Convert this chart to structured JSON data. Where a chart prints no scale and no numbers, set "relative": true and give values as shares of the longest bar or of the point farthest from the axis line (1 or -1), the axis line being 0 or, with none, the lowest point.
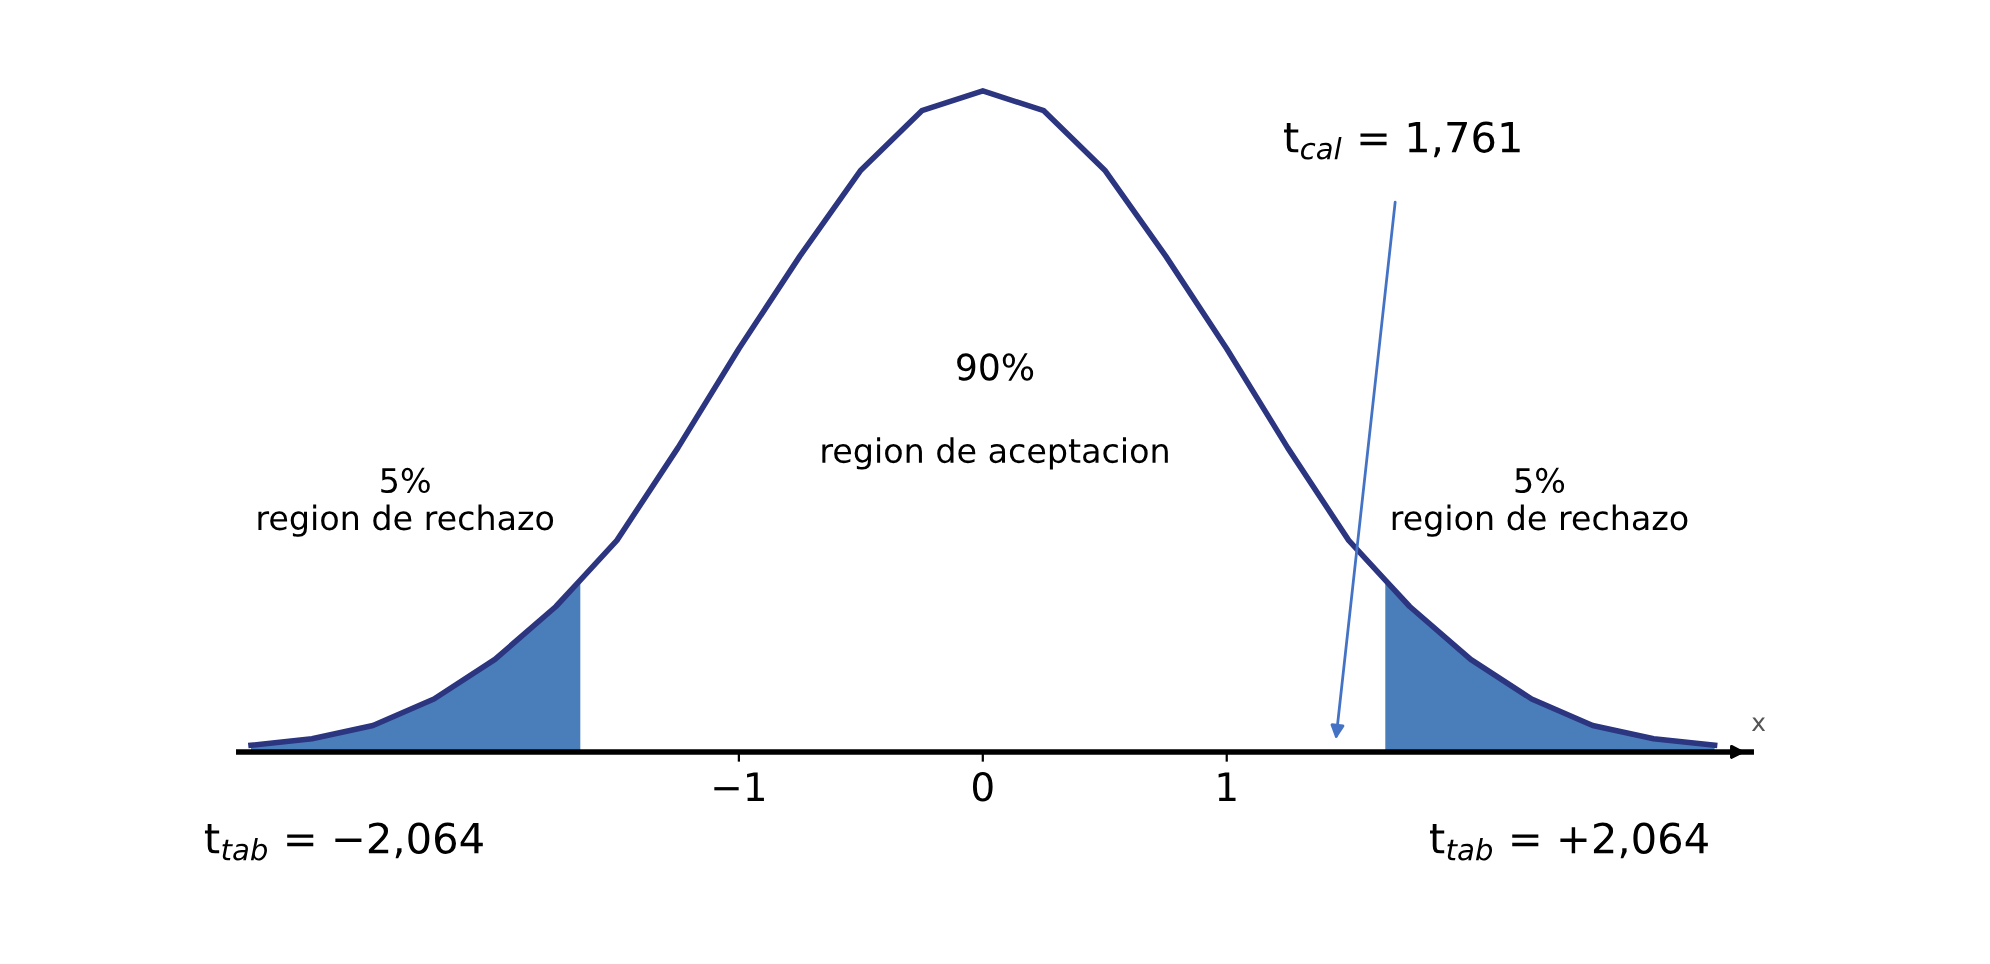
{
  "chart_data": {
    "type": "line",
    "relative": true,
    "xlabel": "x",
    "x": [
      -3,
      -2.75,
      -2.5,
      -2.25,
      -2,
      -1.75,
      -1.65,
      -1.5,
      -1.25,
      -1,
      -0.75,
      -0.5,
      -0.25,
      0,
      0.25,
      0.5,
      0.75,
      1,
      1.25,
      1.5,
      1.65,
      1.75,
      2,
      2.25,
      2.5,
      2.75,
      3
    ],
    "series": [
      {
        "color": "#2b3580",
        "values": [
          0.01,
          0.02,
          0.04,
          0.08,
          0.14,
          0.22,
          0.26,
          0.32,
          0.46,
          0.61,
          0.75,
          0.88,
          0.97,
          1,
          0.97,
          0.88,
          0.75,
          0.61,
          0.46,
          0.32,
          0.26,
          0.22,
          0.14,
          0.08,
          0.04,
          0.02,
          0.01
        ]
      },
      {
        "type": "area",
        "color": "#4a7ebb",
        "x": [
          -3,
          -2.75,
          -2.5,
          -2.25,
          -2,
          -1.75,
          -1.65
        ],
        "values": [
          0.01,
          0.02,
          0.04,
          0.08,
          0.14,
          0.22,
          0.26
        ]
      },
      {
        "type": "area",
        "color": "#4a7ebb",
        "x": [
          1.65,
          1.75,
          2,
          2.25,
          2.5,
          2.75,
          3
        ],
        "values": [
          0.26,
          0.22,
          0.14,
          0.08,
          0.04,
          0.02,
          0.01
        ]
      }
    ],
    "xlim": [
      -3.05,
      3.15
    ],
    "xticks": [
      {
        "value": -1,
        "label": "−1"
      },
      0,
      1
    ],
    "annotations": [
      "90%",
      "region de aceptacion",
      "5%\nregion de rechazo",
      "5%\nregion de rechazo",
      "t$_{tab}$ = −2,064",
      "t$_{tab}$ = +2,064",
      "t$_{cal}$ = 1,761"
    ],
    "grid": false
  }
}
